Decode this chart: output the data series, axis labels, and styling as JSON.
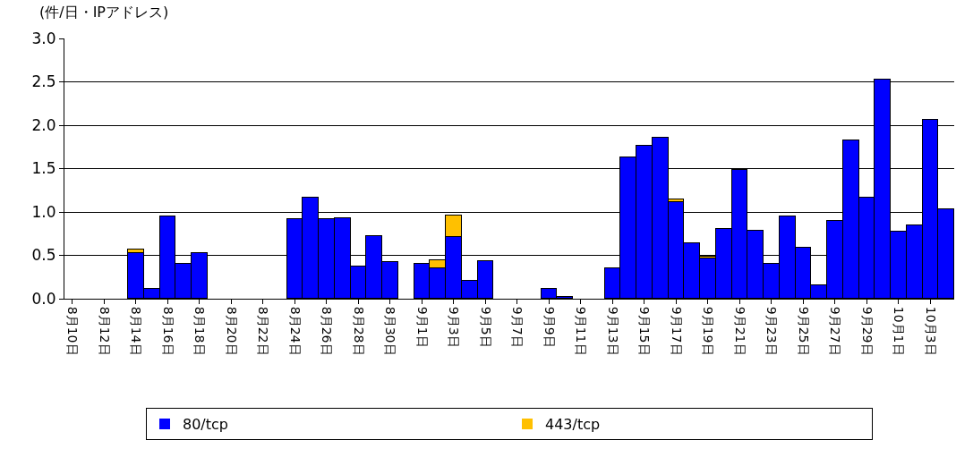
{
  "chart_data": {
    "type": "bar",
    "stacked": true,
    "ylabel": "(件/日・IPアドレス)",
    "categories": [
      "8月10日",
      null,
      "8月12日",
      null,
      "8月14日",
      null,
      "8月16日",
      null,
      "8月18日",
      null,
      "8月20日",
      null,
      "8月22日",
      null,
      "8月24日",
      null,
      "8月26日",
      null,
      "8月28日",
      null,
      "8月30日",
      null,
      "9月1日",
      null,
      "9月3日",
      null,
      "9月5日",
      null,
      "9月7日",
      null,
      "9月9日",
      null,
      "9月11日",
      null,
      "9月13日",
      null,
      "9月15日",
      null,
      "9月17日",
      null,
      "9月19日",
      null,
      "9月21日",
      null,
      "9月23日",
      null,
      "9月25日",
      null,
      "9月27日",
      null,
      "9月29日",
      null,
      "10月1日",
      null,
      "10月3日",
      null
    ],
    "series": [
      {
        "name": "80/tcp",
        "color": "#0000ff",
        "values": [
          0,
          0,
          0,
          0,
          0.53,
          0.11,
          0.95,
          0.4,
          0.53,
          0,
          0,
          0,
          0,
          0,
          0.92,
          1.16,
          0.92,
          0.93,
          0.37,
          0.72,
          0.42,
          0,
          0.4,
          0.35,
          0.71,
          0.21,
          0.43,
          0,
          0,
          0,
          0.11,
          0.02,
          0,
          0,
          0.35,
          1.63,
          1.76,
          1.86,
          1.11,
          0.64,
          0.46,
          0.8,
          1.48,
          0.78,
          0.4,
          0.95,
          0.59,
          0.15,
          0.9,
          1.82,
          1.16,
          2.53,
          0.77,
          0.85,
          2.06,
          1.03
        ]
      },
      {
        "name": "443/tcp",
        "color": "#ffc000",
        "values": [
          0,
          0,
          0,
          0,
          0.04,
          0,
          0,
          0,
          0,
          0,
          0,
          0,
          0,
          0,
          0,
          0,
          0,
          0,
          0,
          0,
          0,
          0,
          0,
          0.09,
          0.25,
          0,
          0,
          0,
          0,
          0,
          0,
          0,
          0,
          0,
          0,
          0,
          0,
          0,
          0.03,
          0,
          0.02,
          0,
          0,
          0,
          0,
          0,
          0,
          0,
          0,
          0,
          0,
          0,
          0,
          0,
          0,
          0
        ]
      }
    ],
    "ylim": [
      0,
      3.0
    ],
    "yticks": [
      {
        "value": 0,
        "label": "0.0"
      },
      0.5,
      {
        "value": 1,
        "label": "1.0"
      },
      1.5,
      {
        "value": 2,
        "label": "2.0"
      },
      2.5,
      {
        "value": 3,
        "label": "3.0"
      }
    ],
    "grid": "y",
    "legend": "bottom"
  }
}
